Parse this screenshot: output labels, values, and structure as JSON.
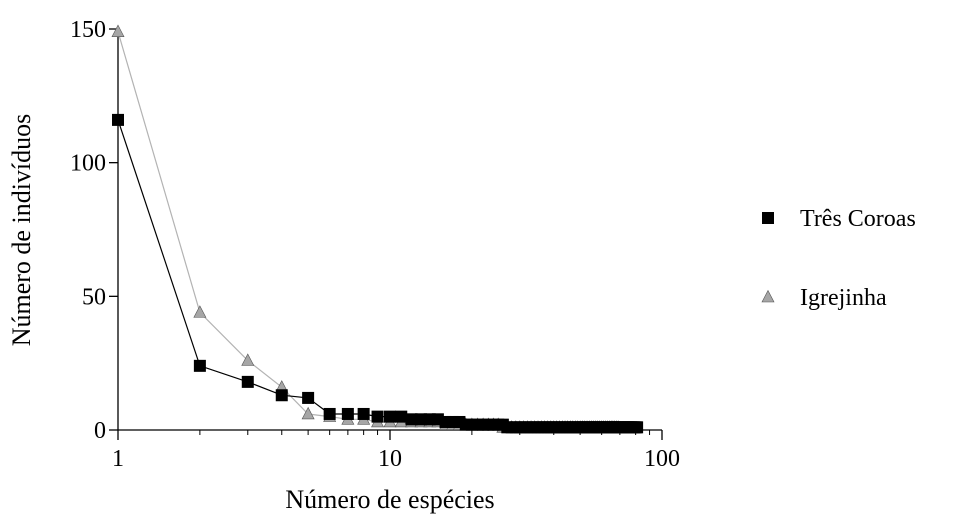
{
  "chart_data": {
    "type": "line",
    "xlabel": "Número de espécies",
    "ylabel": "Número de indivíduos",
    "xscale": "log",
    "xlim": [
      1,
      100
    ],
    "ylim": [
      0,
      150
    ],
    "xticks": [
      "1",
      "10",
      "100"
    ],
    "yticks": [
      "0",
      "50",
      "100",
      "150"
    ],
    "grid": false,
    "legend_position": "right",
    "series": [
      {
        "name": "Três Coroas",
        "marker": "square",
        "line_color": "#000000",
        "marker_color": "#000000",
        "x": [
          1,
          2,
          3,
          4,
          5,
          6,
          7,
          8,
          9,
          10,
          11,
          12,
          13,
          14,
          15,
          16,
          17,
          18,
          19,
          20,
          21,
          22,
          23,
          24,
          25,
          26,
          27,
          28,
          29,
          30,
          31,
          32,
          33,
          34,
          35,
          36,
          37,
          38,
          39,
          40,
          41,
          42,
          43,
          44,
          45,
          46,
          47,
          48,
          49,
          50,
          51,
          52,
          53,
          54,
          55,
          56,
          57,
          58,
          59,
          60,
          61,
          62,
          63,
          64,
          65,
          66,
          67,
          68,
          69,
          70,
          71,
          72,
          73,
          74,
          75,
          76,
          77,
          78,
          79,
          80,
          81
        ],
        "y": [
          116,
          24,
          18,
          13,
          12,
          6,
          6,
          6,
          5,
          5,
          5,
          4,
          4,
          4,
          4,
          3,
          3,
          3,
          2,
          2,
          2,
          2,
          2,
          2,
          2,
          2,
          1,
          1,
          1,
          1,
          1,
          1,
          1,
          1,
          1,
          1,
          1,
          1,
          1,
          1,
          1,
          1,
          1,
          1,
          1,
          1,
          1,
          1,
          1,
          1,
          1,
          1,
          1,
          1,
          1,
          1,
          1,
          1,
          1,
          1,
          1,
          1,
          1,
          1,
          1,
          1,
          1,
          1,
          1,
          1,
          1,
          1,
          1,
          1,
          1,
          1,
          1,
          1,
          1,
          1,
          1
        ]
      },
      {
        "name": "Igrejinha",
        "marker": "triangle",
        "line_color": "#b3b3b3",
        "marker_color": "#a6a6a6",
        "x": [
          1,
          2,
          3,
          4,
          5,
          6,
          7,
          8,
          9,
          10,
          11,
          12,
          13,
          14,
          15,
          16,
          17,
          18,
          19,
          20,
          21,
          22,
          23,
          24,
          25,
          26,
          27,
          28,
          29,
          30,
          31,
          32,
          33,
          34,
          35,
          36,
          37,
          38,
          39,
          40,
          41,
          42,
          43,
          44,
          45,
          46,
          47,
          48,
          49,
          50,
          51,
          52,
          53,
          54,
          55,
          56,
          57,
          58,
          59,
          60,
          61,
          62,
          63,
          64,
          65,
          66,
          67,
          68,
          69
        ],
        "y": [
          149,
          44,
          26,
          16,
          6,
          5,
          4,
          4,
          3,
          3,
          3,
          3,
          3,
          3,
          3,
          2,
          2,
          2,
          2,
          2,
          2,
          2,
          2,
          2,
          2,
          1,
          1,
          1,
          1,
          1,
          1,
          1,
          1,
          1,
          1,
          1,
          1,
          1,
          1,
          1,
          1,
          1,
          1,
          1,
          1,
          1,
          1,
          1,
          1,
          1,
          1,
          1,
          1,
          1,
          1,
          1,
          1,
          1,
          1,
          1,
          1,
          1,
          1,
          1,
          1,
          1,
          1,
          1,
          1
        ]
      }
    ]
  }
}
